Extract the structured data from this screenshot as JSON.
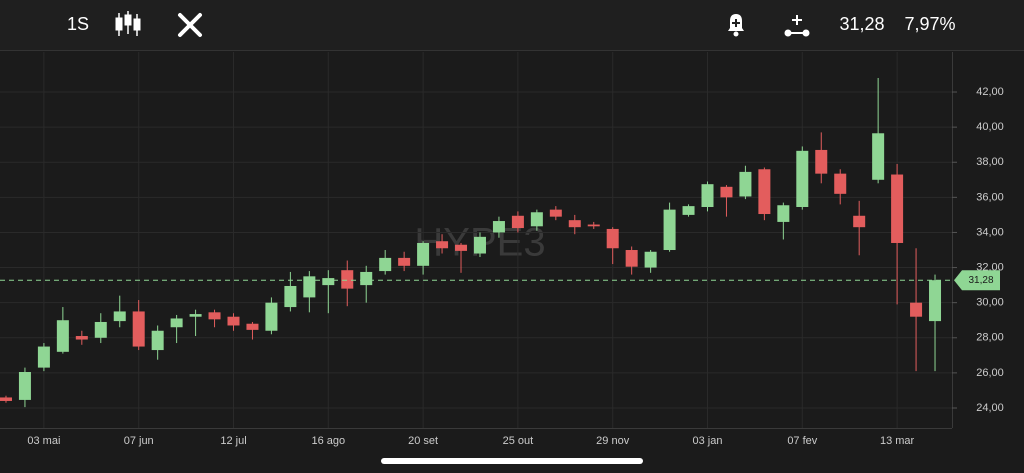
{
  "toolbar": {
    "interval": "1S",
    "change": "7,97%"
  },
  "chart_data": {
    "type": "candlestick",
    "title": "HYPE3",
    "categories": [
      null,
      null,
      "03 mai",
      null,
      null,
      null,
      null,
      "07 jun",
      null,
      null,
      null,
      null,
      "12 jul",
      null,
      null,
      null,
      null,
      "16 ago",
      null,
      null,
      null,
      null,
      "20 set",
      null,
      null,
      null,
      null,
      "25 out",
      null,
      null,
      null,
      null,
      "29 nov",
      null,
      null,
      null,
      null,
      "03 jan",
      null,
      null,
      null,
      null,
      "07 fev",
      null,
      null,
      null,
      null,
      "13 mar",
      null,
      null
    ],
    "open": [
      24.6,
      24.46,
      26.3,
      27.2,
      28.1,
      28.0,
      28.95,
      29.5,
      27.3,
      28.6,
      29.2,
      29.45,
      29.2,
      28.8,
      28.4,
      29.75,
      30.3,
      31.0,
      31.85,
      31.0,
      31.8,
      32.55,
      32.1,
      33.5,
      33.3,
      32.8,
      34.0,
      34.95,
      34.35,
      35.3,
      34.7,
      34.45,
      34.2,
      33.0,
      32.0,
      33.0,
      35.0,
      35.45,
      36.6,
      36.05,
      37.6,
      34.6,
      35.45,
      38.7,
      37.35,
      34.95,
      37.0,
      37.3,
      30.0,
      28.95
    ],
    "high": [
      24.7,
      26.3,
      27.7,
      29.75,
      28.4,
      29.4,
      30.4,
      30.15,
      28.7,
      29.3,
      29.6,
      29.6,
      29.4,
      28.9,
      30.3,
      31.75,
      31.8,
      31.85,
      32.4,
      32.1,
      33.0,
      32.9,
      33.5,
      33.9,
      33.4,
      34.0,
      34.9,
      35.2,
      35.3,
      35.5,
      35.0,
      34.6,
      34.3,
      33.2,
      33.0,
      35.7,
      35.6,
      36.9,
      36.7,
      37.8,
      37.7,
      35.7,
      38.9,
      39.7,
      37.6,
      35.8,
      42.8,
      37.9,
      33.1,
      31.6
    ],
    "low": [
      24.3,
      24.05,
      26.1,
      27.1,
      27.6,
      27.7,
      28.6,
      27.3,
      26.75,
      27.7,
      28.1,
      28.6,
      28.4,
      27.9,
      28.2,
      29.5,
      29.45,
      29.4,
      29.8,
      30.0,
      31.6,
      31.8,
      31.6,
      32.8,
      31.7,
      32.6,
      33.7,
      34.0,
      34.1,
      34.7,
      33.9,
      34.2,
      32.2,
      31.6,
      31.7,
      32.9,
      34.9,
      35.2,
      34.9,
      35.9,
      34.7,
      33.6,
      35.3,
      36.8,
      35.6,
      32.7,
      36.8,
      29.9,
      26.1,
      26.1
    ],
    "close": [
      24.4,
      26.05,
      27.5,
      29.0,
      27.9,
      28.9,
      29.5,
      27.5,
      28.4,
      29.1,
      29.35,
      29.05,
      28.7,
      28.45,
      30.0,
      30.95,
      31.5,
      31.4,
      30.8,
      31.75,
      32.55,
      32.1,
      33.4,
      33.1,
      32.95,
      33.75,
      34.65,
      34.25,
      35.15,
      34.9,
      34.3,
      34.35,
      33.1,
      32.05,
      32.9,
      35.3,
      35.5,
      36.75,
      36.0,
      37.45,
      35.05,
      35.55,
      38.65,
      37.35,
      36.2,
      34.3,
      39.65,
      33.4,
      29.2,
      31.28
    ],
    "up_color": "#8fd694",
    "down_color": "#e35d5d",
    "last_price": {
      "value": 31.28,
      "label": "31,28"
    },
    "ylim": [
      22.86,
      44.28
    ],
    "yticks": [
      {
        "value": 24,
        "label": "24,00"
      },
      {
        "value": 26,
        "label": "26,00"
      },
      {
        "value": 28,
        "label": "28,00"
      },
      {
        "value": 30,
        "label": "30,00"
      },
      {
        "value": 32,
        "label": "32,00"
      },
      {
        "value": 34,
        "label": "34,00"
      },
      {
        "value": 36,
        "label": "36,00"
      },
      {
        "value": 38,
        "label": "38,00"
      },
      {
        "value": 40,
        "label": "40,00"
      },
      {
        "value": 42,
        "label": "42,00"
      }
    ],
    "grid": true
  }
}
